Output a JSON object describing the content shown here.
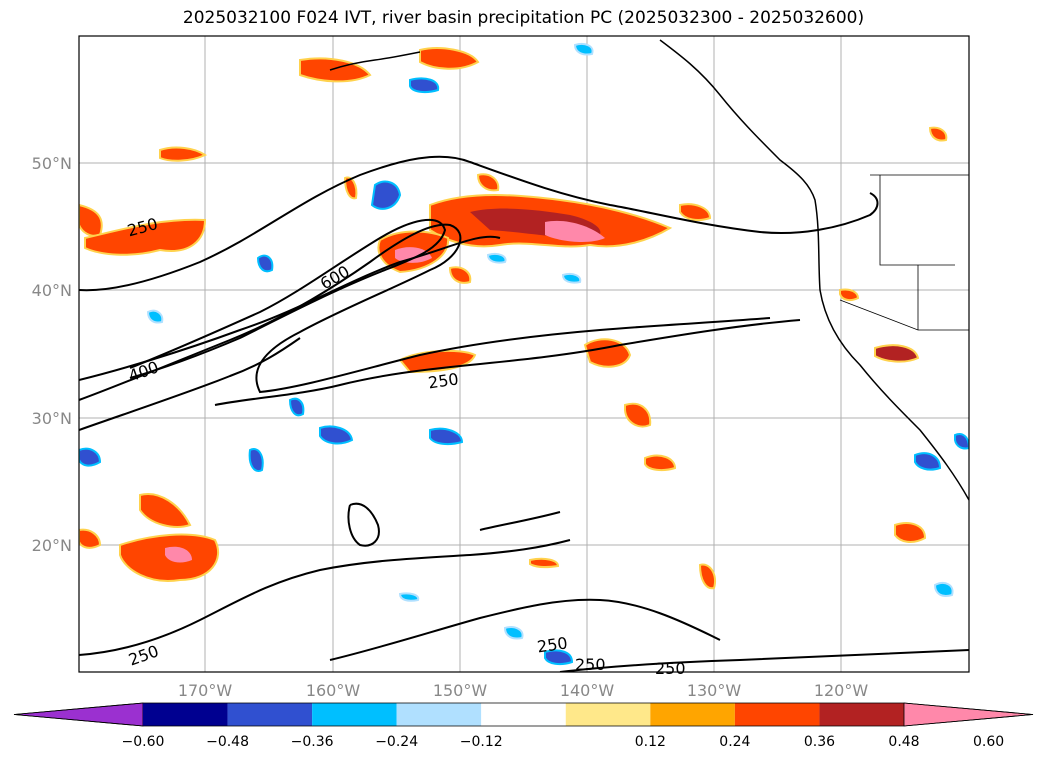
{
  "title": "2025032100 F024 IVT, river basin precipitation PC (2025032300 - 2025032600)",
  "map": {
    "lat_labels": [
      "50°N",
      "40°N",
      "30°N",
      "20°N"
    ],
    "lon_labels": [
      "170°W",
      "160°W",
      "150°W",
      "140°W",
      "130°W",
      "120°W"
    ],
    "contour_labels": [
      "250",
      "600",
      "400",
      "250",
      "250",
      "250",
      "250",
      "250"
    ]
  },
  "colorbar": {
    "ticks": [
      "−0.60",
      "−0.48",
      "−0.36",
      "−0.24",
      "−0.12",
      "0.12",
      "0.24",
      "0.36",
      "0.48",
      "0.60"
    ],
    "colors": [
      "#9b30d0",
      "#000090",
      "#3050d0",
      "#00bfff",
      "#b0e0ff",
      "#ffffff",
      "#ffe88a",
      "#ffa500",
      "#ff4500",
      "#b22222",
      "#ff88aa"
    ]
  }
}
